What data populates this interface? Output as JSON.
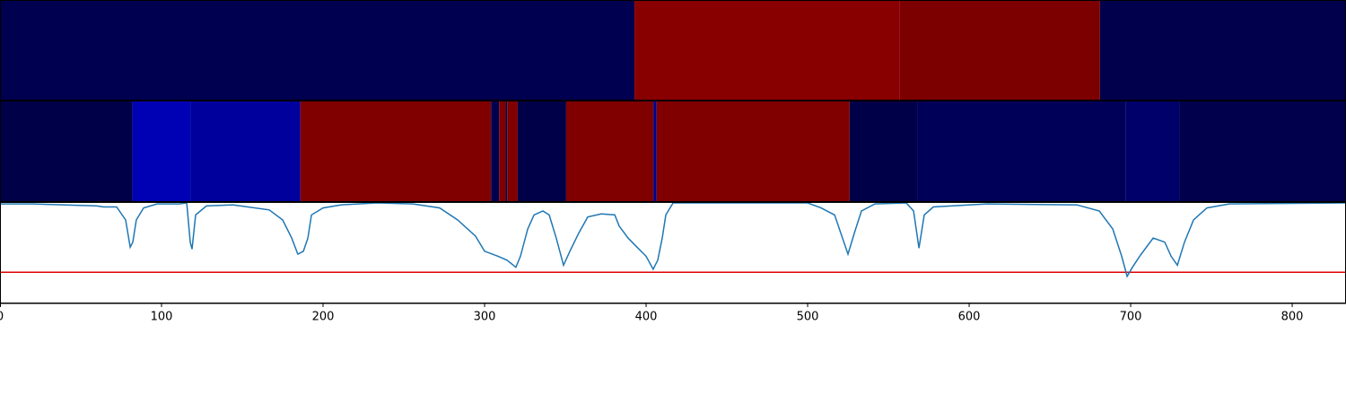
{
  "chart_data": [
    {
      "type": "heatmap",
      "xlim": [
        0,
        833.3
      ],
      "segments": [
        {
          "start": 0,
          "end": 392.8,
          "color": "#000050"
        },
        {
          "start": 392.8,
          "end": 557,
          "color": "#880000"
        },
        {
          "start": 557,
          "end": 681,
          "color": "#7d0000"
        },
        {
          "start": 681,
          "end": 833.3,
          "color": "#00004c"
        }
      ]
    },
    {
      "type": "heatmap",
      "xlim": [
        0,
        833.3
      ],
      "segments": [
        {
          "start": 0,
          "end": 82,
          "color": "#000048"
        },
        {
          "start": 82,
          "end": 118,
          "color": "#0000b4"
        },
        {
          "start": 118,
          "end": 186,
          "color": "#00009c"
        },
        {
          "start": 186,
          "end": 304,
          "color": "#800000"
        },
        {
          "start": 304,
          "end": 309,
          "color": "#000050"
        },
        {
          "start": 309,
          "end": 313,
          "color": "#800000"
        },
        {
          "start": 313,
          "end": 314,
          "color": "#000050"
        },
        {
          "start": 314,
          "end": 320.5,
          "color": "#800000"
        },
        {
          "start": 320.5,
          "end": 350.5,
          "color": "#000048"
        },
        {
          "start": 350.5,
          "end": 404.5,
          "color": "#800000"
        },
        {
          "start": 404.5,
          "end": 406.5,
          "color": "#00008c"
        },
        {
          "start": 406.5,
          "end": 526,
          "color": "#800000"
        },
        {
          "start": 526,
          "end": 568,
          "color": "#000048"
        },
        {
          "start": 568,
          "end": 697,
          "color": "#000058"
        },
        {
          "start": 697,
          "end": 730,
          "color": "#00006a"
        },
        {
          "start": 730,
          "end": 833.3,
          "color": "#00004c"
        }
      ]
    },
    {
      "type": "line",
      "xlim": [
        0,
        833.3
      ],
      "ylim": [
        0,
        1
      ],
      "xticks": [
        0,
        100,
        200,
        300,
        400,
        500,
        600,
        700,
        800
      ],
      "threshold": 0.31,
      "threshold_color": "#e00000",
      "series": [
        {
          "color": "#1f77b4",
          "x": [
            0,
            20,
            40,
            60,
            64,
            72.2,
            77.8,
            80.6,
            82.2,
            84.4,
            88.9,
            97.2,
            111.1,
            115.6,
            117.8,
            118.9,
            121.1,
            127.8,
            144.4,
            166.7,
            175,
            180.6,
            184.4,
            187.8,
            190.6,
            192.8,
            200,
            211.1,
            233.3,
            255.6,
            272.2,
            283.3,
            294.4,
            300,
            308.3,
            313.9,
            319.4,
            322.2,
            326.7,
            330.6,
            336.1,
            340,
            344.4,
            348.9,
            352.8,
            358.3,
            363.9,
            372.2,
            380.6,
            383.3,
            388.9,
            394.4,
            400,
            404.4,
            407.2,
            410,
            412.2,
            416.7,
            500,
            508.3,
            516.7,
            525,
            528.9,
            533.3,
            541.7,
            561.1,
            565.6,
            568.9,
            572.2,
            577.8,
            611.1,
            666.7,
            680.6,
            688.9,
            694.4,
            697.8,
            701.1,
            705.6,
            713.9,
            721.1,
            725,
            728.9,
            733.3,
            738.9,
            747.2,
            761.1,
            833.3
          ],
          "values": [
            0.99,
            0.99,
            0.98,
            0.97,
            0.96,
            0.96,
            0.83,
            0.56,
            0.61,
            0.83,
            0.95,
            0.99,
            0.99,
            1.0,
            0.61,
            0.54,
            0.88,
            0.97,
            0.98,
            0.93,
            0.83,
            0.65,
            0.49,
            0.52,
            0.65,
            0.88,
            0.95,
            0.98,
            1.0,
            0.99,
            0.95,
            0.83,
            0.67,
            0.52,
            0.47,
            0.43,
            0.36,
            0.47,
            0.74,
            0.88,
            0.92,
            0.88,
            0.65,
            0.38,
            0.52,
            0.7,
            0.86,
            0.89,
            0.88,
            0.77,
            0.65,
            0.56,
            0.47,
            0.34,
            0.43,
            0.65,
            0.88,
            1.0,
            1.0,
            0.95,
            0.88,
            0.49,
            0.7,
            0.92,
            0.99,
            1.0,
            0.92,
            0.55,
            0.88,
            0.96,
            0.99,
            0.98,
            0.92,
            0.74,
            0.47,
            0.27,
            0.36,
            0.47,
            0.65,
            0.61,
            0.47,
            0.38,
            0.61,
            0.83,
            0.95,
            0.99,
            1.0
          ]
        }
      ]
    }
  ]
}
